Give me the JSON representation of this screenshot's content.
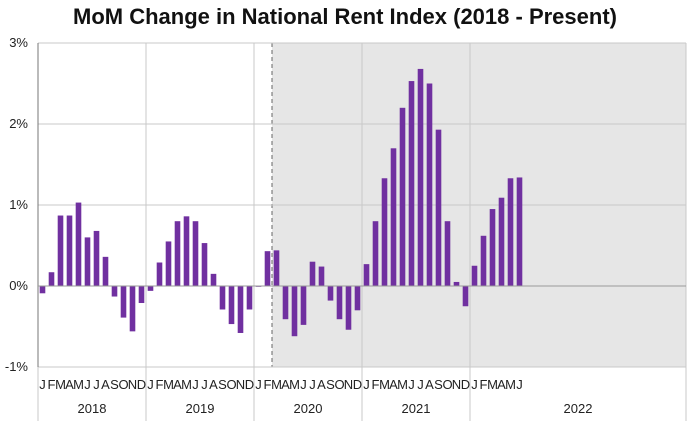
{
  "chart_data": {
    "type": "bar",
    "title": "MoM Change in National Rent Index (2018 - Present)",
    "xlabel": "",
    "ylabel": "",
    "ylim": [
      -1,
      3
    ],
    "y_ticks": [
      "-1%",
      "0%",
      "1%",
      "2%",
      "3%"
    ],
    "y_tick_values": [
      -1,
      0,
      1,
      2,
      3
    ],
    "shaded_from": "2020 Mar",
    "colors": {
      "bar": "#7030a0",
      "shade": "#e6e6e6",
      "grid": "#c8c8c8",
      "axis": "#777777"
    },
    "years": [
      {
        "label": "2018",
        "months": [
          "J",
          "F",
          "M",
          "A",
          "M",
          "J",
          "J",
          "A",
          "S",
          "O",
          "N",
          "D"
        ],
        "values": [
          -0.09,
          0.17,
          0.87,
          0.87,
          1.03,
          0.6,
          0.68,
          0.36,
          -0.13,
          -0.39,
          -0.56,
          -0.21
        ]
      },
      {
        "label": "2019",
        "months": [
          "J",
          "F",
          "M",
          "A",
          "M",
          "J",
          "J",
          "A",
          "S",
          "O",
          "N",
          "D"
        ],
        "values": [
          -0.06,
          0.29,
          0.55,
          0.8,
          0.86,
          0.8,
          0.53,
          0.15,
          -0.29,
          -0.47,
          -0.58,
          -0.29
        ]
      },
      {
        "label": "2020",
        "months": [
          "J",
          "F",
          "M",
          "A",
          "M",
          "J",
          "J",
          "A",
          "S",
          "O",
          "N",
          "D"
        ],
        "values": [
          -0.01,
          0.43,
          0.44,
          -0.41,
          -0.62,
          -0.48,
          0.3,
          0.24,
          -0.18,
          -0.41,
          -0.54,
          -0.3
        ]
      },
      {
        "label": "2021",
        "months": [
          "J",
          "F",
          "M",
          "A",
          "M",
          "J",
          "J",
          "A",
          "S",
          "O",
          "N",
          "D"
        ],
        "values": [
          0.27,
          0.8,
          1.33,
          1.7,
          2.2,
          2.53,
          2.68,
          2.5,
          1.93,
          0.8,
          0.05,
          -0.25
        ]
      },
      {
        "label": "2022",
        "months": [
          "J",
          "F",
          "M",
          "A",
          "M",
          "J"
        ],
        "values": [
          0.25,
          0.62,
          0.95,
          1.09,
          1.33,
          1.34
        ]
      }
    ]
  }
}
